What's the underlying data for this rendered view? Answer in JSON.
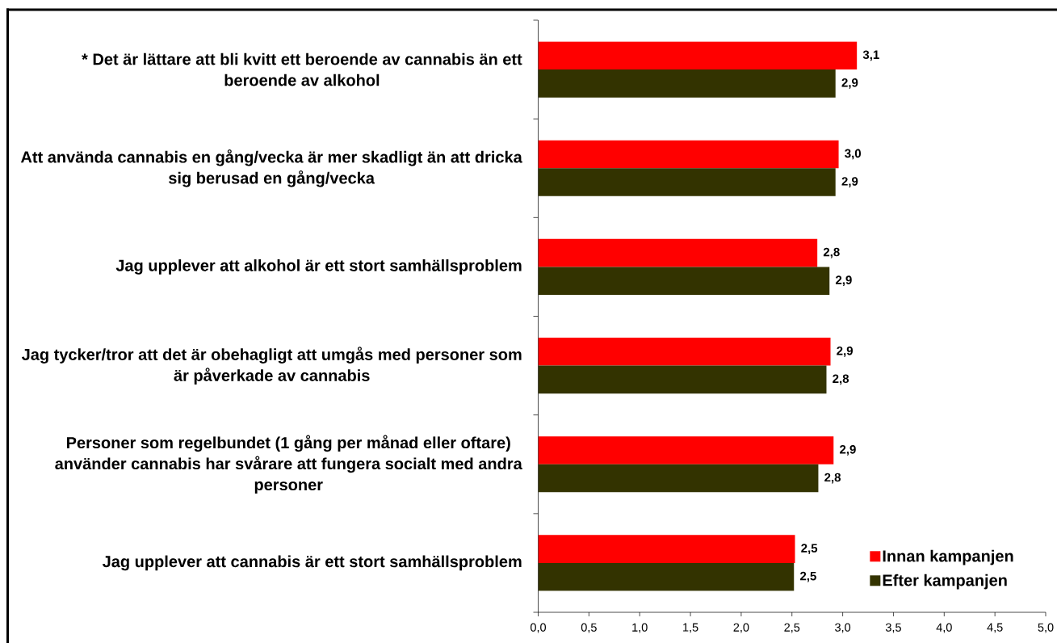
{
  "chart_data": {
    "type": "bar",
    "orientation": "horizontal",
    "categories": [
      "* Det är lättare att bli kvitt ett beroende av cannabis än ett beroende av alkohol",
      "Att använda cannabis en gång/vecka är mer skadligt än att dricka sig berusad en gång/vecka",
      "Jag upplever att alkohol är ett stort samhällsproblem",
      "Jag tycker/tror att det är obehagligt att umgås med personer som är påverkade av cannabis",
      "Personer som regelbundet (1 gång per månad eller oftare) använder cannabis har svårare att fungera socialt med andra personer",
      "Jag upplever att cannabis är ett stort samhällsproblem"
    ],
    "series": [
      {
        "name": "Innan kampanjen",
        "color": "#ff0000",
        "values": [
          3.14,
          2.96,
          2.75,
          2.88,
          2.91,
          2.53
        ],
        "value_labels": [
          "3,1",
          "3,0",
          "2,8",
          "2,9",
          "2,9",
          "2,5"
        ]
      },
      {
        "name": "Efter kampanjen",
        "color": "#333300",
        "values": [
          2.93,
          2.93,
          2.87,
          2.84,
          2.76,
          2.52
        ],
        "value_labels": [
          "2,9",
          "2,9",
          "2,9",
          "2,8",
          "2,8",
          "2,5"
        ]
      }
    ],
    "xlim": [
      0,
      5
    ],
    "xticks": [
      {
        "value": 0,
        "label": "0,0"
      },
      {
        "value": 0.5,
        "label": "0,5"
      },
      {
        "value": 1,
        "label": "1,0"
      },
      {
        "value": 1.5,
        "label": "1,5"
      },
      {
        "value": 2,
        "label": "2,0"
      },
      {
        "value": 2.5,
        "label": "2,5"
      },
      {
        "value": 3,
        "label": "3,0"
      },
      {
        "value": 3.5,
        "label": "3,5"
      },
      {
        "value": 4,
        "label": "4,0"
      },
      {
        "value": 4.5,
        "label": "4,5"
      },
      {
        "value": 5,
        "label": "5,0"
      }
    ],
    "legend": "bottom right"
  }
}
